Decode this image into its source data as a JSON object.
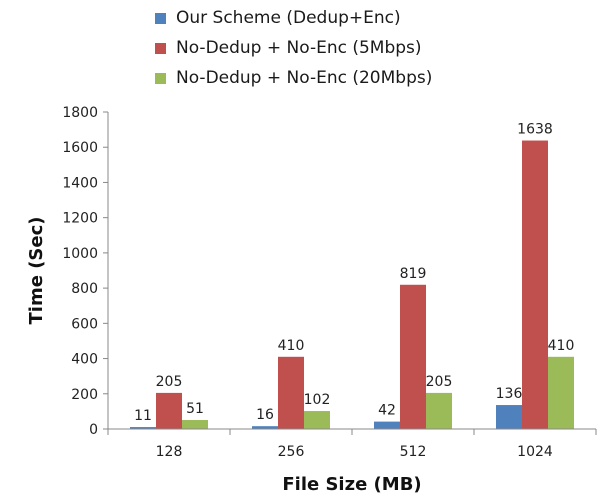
{
  "chart_data": {
    "type": "bar",
    "title": "",
    "xlabel": "File Size (MB)",
    "ylabel": "Time (Sec)",
    "categories": [
      "128",
      "256",
      "512",
      "1024"
    ],
    "ylim": [
      0,
      1800
    ],
    "yticks": [
      0,
      200,
      400,
      600,
      800,
      1000,
      1200,
      1400,
      1600,
      1800
    ],
    "grid": false,
    "legend_position": "top",
    "series": [
      {
        "name": "Our Scheme (Dedup+Enc)",
        "color": "#4f81bd",
        "values": [
          11,
          16,
          42,
          136
        ]
      },
      {
        "name": "No-Dedup + No-Enc (5Mbps)",
        "color": "#c0504d",
        "values": [
          205,
          410,
          819,
          1638
        ]
      },
      {
        "name": "No-Dedup + No-Enc (20Mbps)",
        "color": "#9bbb59",
        "values": [
          51,
          102,
          205,
          410
        ]
      }
    ]
  }
}
